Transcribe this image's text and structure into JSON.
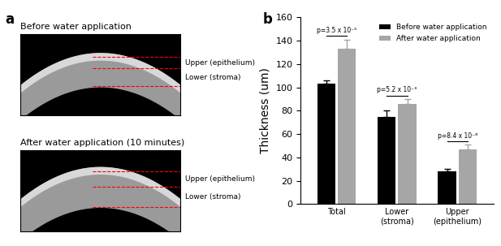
{
  "panel_labels": [
    "a",
    "b"
  ],
  "images": [
    {
      "title": "Before water application",
      "layer_labels": [
        "Upper (epithelium)",
        "Lower (stroma)"
      ]
    },
    {
      "title": "After water application (10 minutes)",
      "layer_labels": [
        "Upper (epithelium)",
        "Lower (stroma)"
      ]
    }
  ],
  "chart_data": {
    "type": "bar",
    "y_label": "Thickness (um)",
    "categories": [
      "Total",
      "Lower\n(stroma)",
      "Upper\n(epithelium)"
    ],
    "series": [
      {
        "name": "Before water application",
        "color": "#000000",
        "values": [
          103,
          75,
          28
        ],
        "errors": [
          3,
          5,
          2
        ]
      },
      {
        "name": "After water application",
        "color": "#a6a6a6",
        "values": [
          133,
          86,
          47
        ],
        "errors": [
          8,
          4,
          4
        ]
      }
    ],
    "p_values": [
      "p=3.5 x 10⁻⁵",
      "p=5.2 x 10⁻³",
      "p=8.4 x 10⁻⁶"
    ],
    "ylim": [
      0,
      160
    ],
    "yticks": [
      0,
      20,
      40,
      60,
      80,
      100,
      120,
      140,
      160
    ],
    "legend": "upper right"
  }
}
